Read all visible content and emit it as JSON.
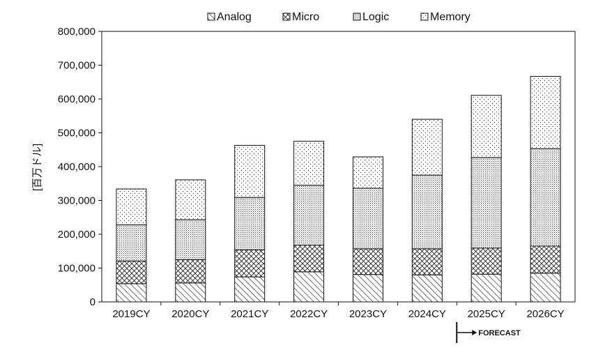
{
  "chart_data": {
    "type": "bar",
    "stacked": true,
    "categories": [
      "2019CY",
      "2020CY",
      "2021CY",
      "2022CY",
      "2023CY",
      "2024CY",
      "2025CY",
      "2026CY"
    ],
    "series": [
      {
        "name": "Analog",
        "pattern": "diagonal-hatch",
        "values": [
          54000,
          56000,
          74000,
          89000,
          81000,
          80000,
          82000,
          85000
        ]
      },
      {
        "name": "Micro",
        "pattern": "cross-hatch",
        "values": [
          67000,
          69000,
          80000,
          79000,
          76000,
          77000,
          77000,
          80000
        ]
      },
      {
        "name": "Logic",
        "pattern": "fine-grid",
        "values": [
          107000,
          118000,
          155000,
          177000,
          179000,
          218000,
          268000,
          288000
        ]
      },
      {
        "name": "Memory",
        "pattern": "dots",
        "values": [
          106000,
          118000,
          154000,
          130000,
          93000,
          165000,
          184000,
          214000
        ]
      }
    ],
    "ylabel": "[百万ドル]",
    "xlabel": "",
    "ylim": [
      0,
      800000
    ],
    "yticks": [
      0,
      100000,
      200000,
      300000,
      400000,
      500000,
      600000,
      700000,
      800000
    ],
    "ytick_labels": [
      "0",
      "100,000",
      "200,000",
      "300,000",
      "400,000",
      "500,000",
      "600,000",
      "700,000",
      "800,000"
    ],
    "legend_position": "top",
    "grid": false,
    "annotation": {
      "text": "FORECAST",
      "starts_at": "2025CY"
    }
  }
}
